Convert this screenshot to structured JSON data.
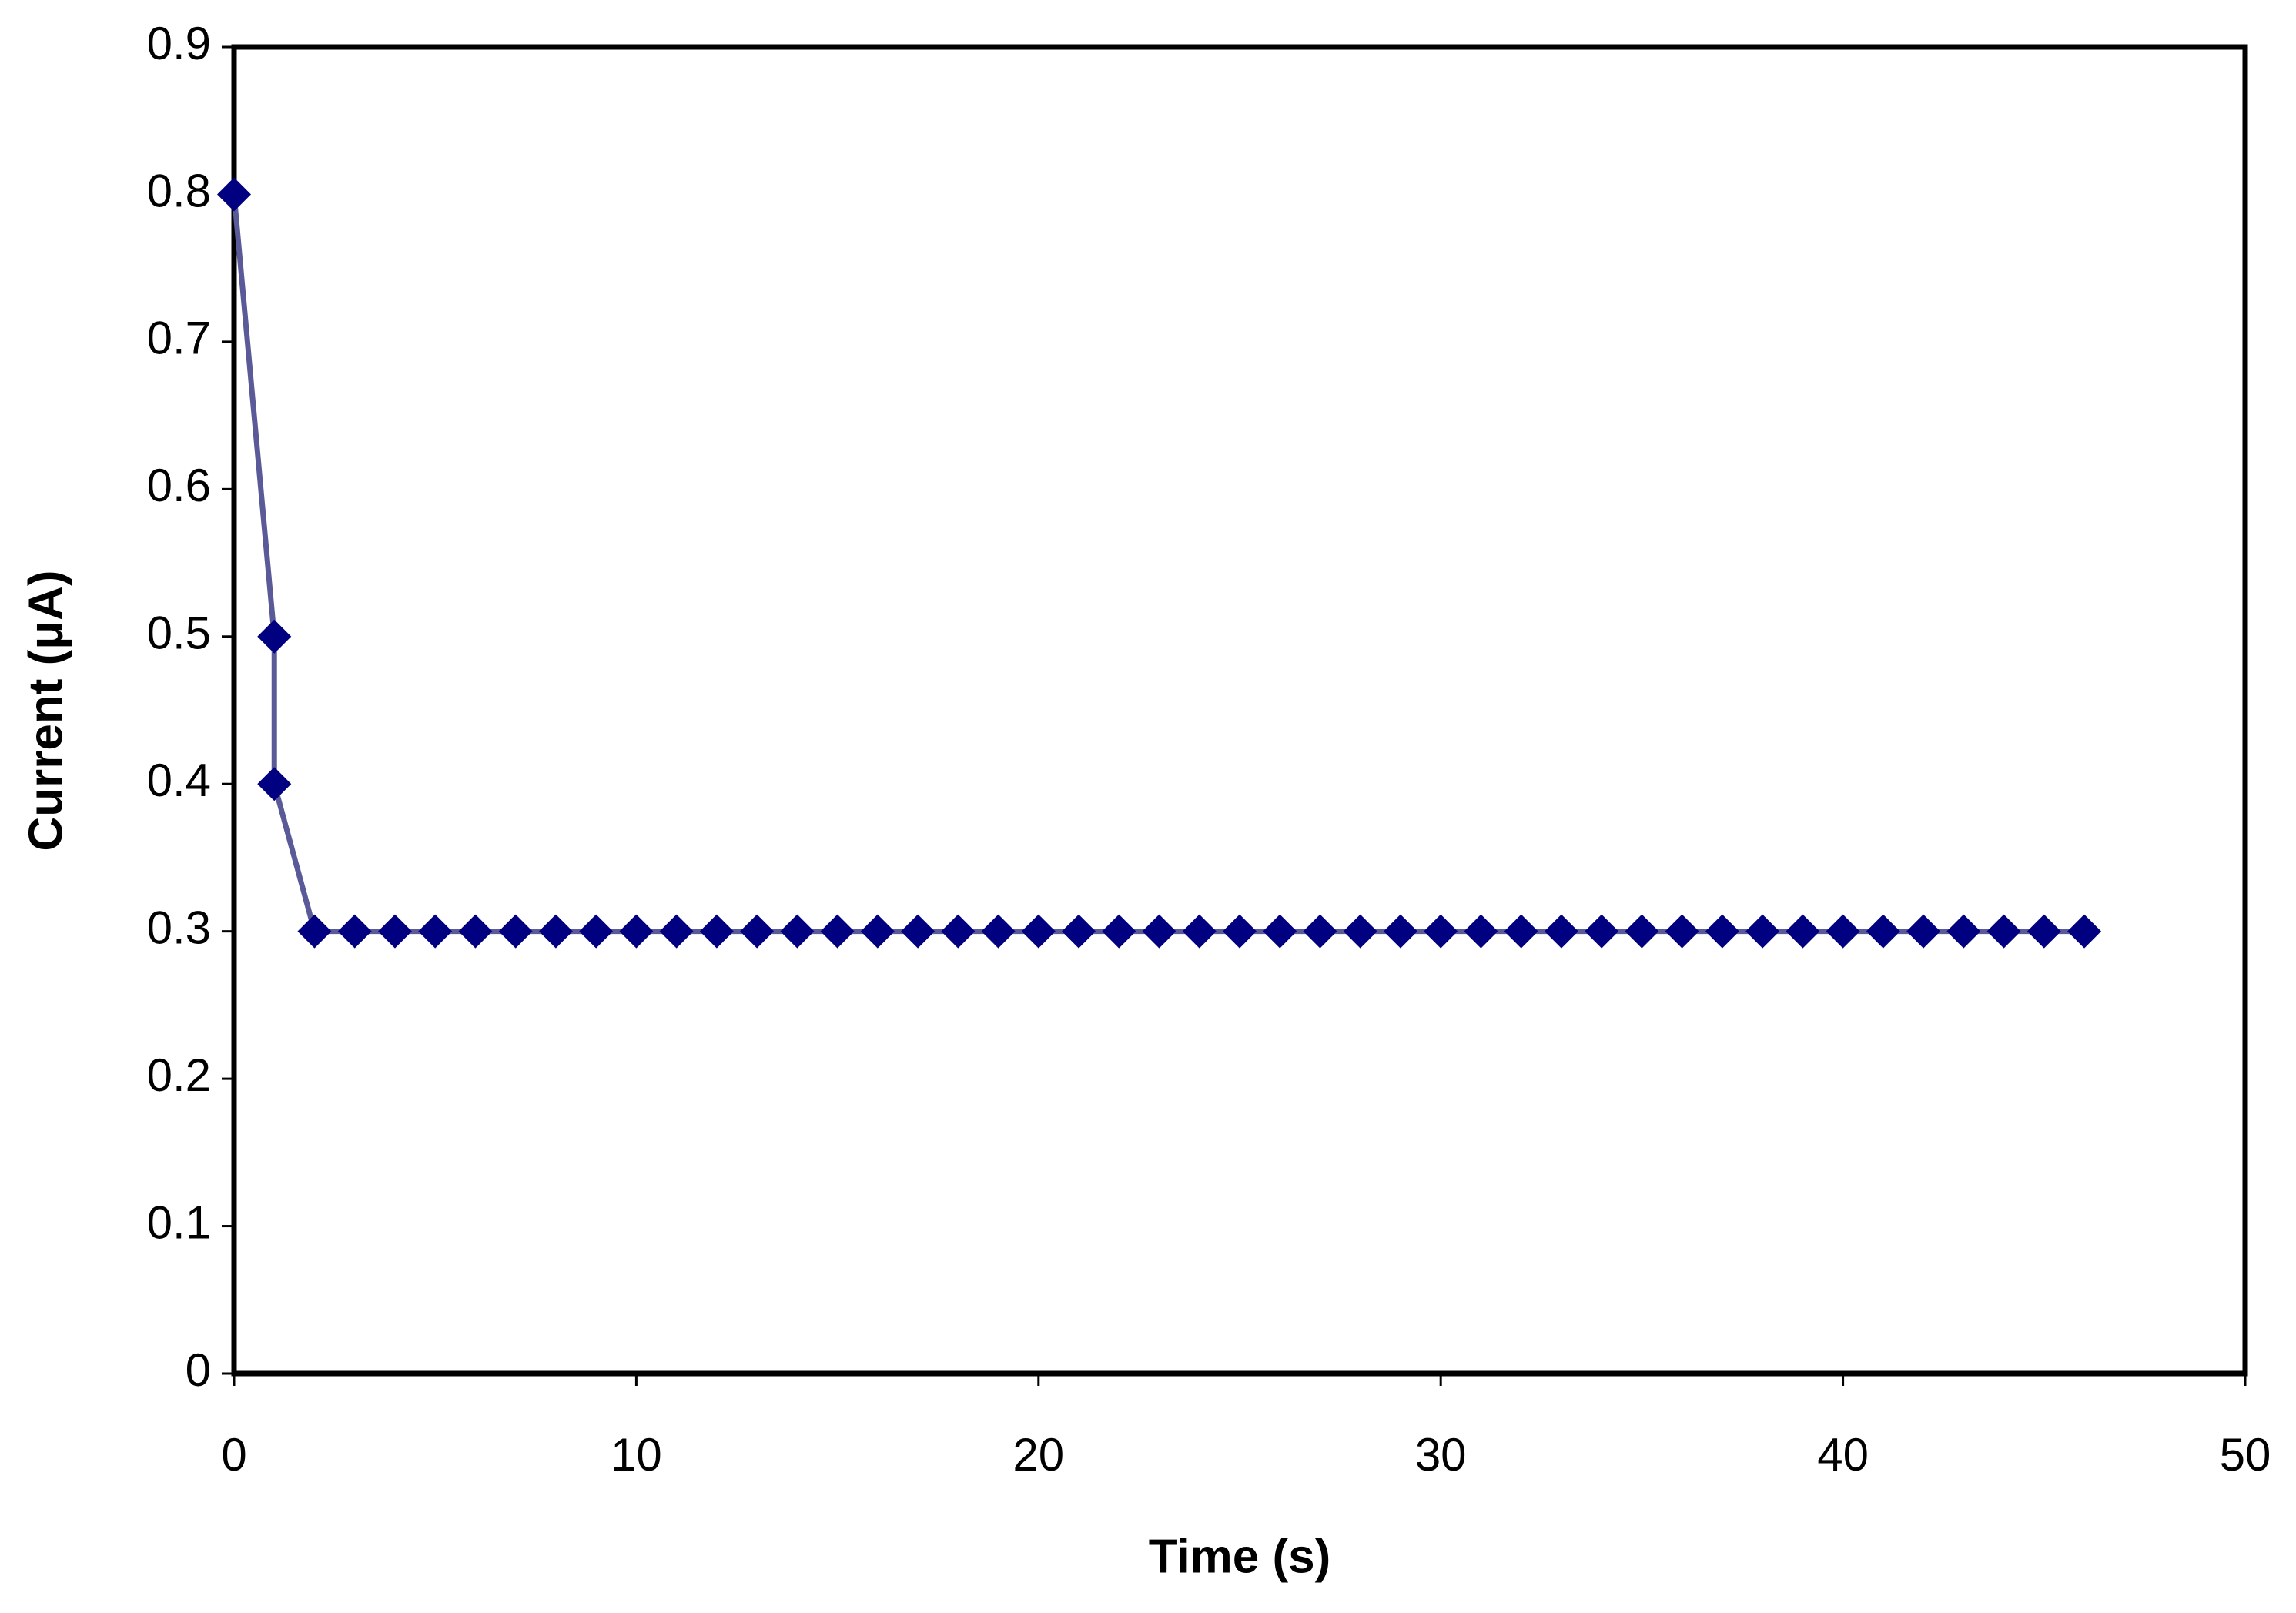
{
  "chart_data": {
    "type": "line",
    "x_label": "Time (s)",
    "y_label": "Current (μA)",
    "x": [
      0,
      1,
      1,
      2,
      3,
      4,
      5,
      6,
      7,
      8,
      9,
      10,
      11,
      12,
      13,
      14,
      15,
      16,
      17,
      18,
      19,
      20,
      21,
      22,
      23,
      24,
      25,
      26,
      27,
      28,
      29,
      30,
      31,
      32,
      33,
      34,
      35,
      36,
      37,
      38,
      39,
      40,
      41,
      42,
      43,
      44,
      45,
      46
    ],
    "values": [
      0.8,
      0.5,
      0.4,
      0.3,
      0.3,
      0.3,
      0.3,
      0.3,
      0.3,
      0.3,
      0.3,
      0.3,
      0.3,
      0.3,
      0.3,
      0.3,
      0.3,
      0.3,
      0.3,
      0.3,
      0.3,
      0.3,
      0.3,
      0.3,
      0.3,
      0.3,
      0.3,
      0.3,
      0.3,
      0.3,
      0.3,
      0.3,
      0.3,
      0.3,
      0.3,
      0.3,
      0.3,
      0.3,
      0.3,
      0.3,
      0.3,
      0.3,
      0.3,
      0.3,
      0.3,
      0.3,
      0.3,
      0.3
    ],
    "color": "#000080",
    "line_color": "#5a5a98",
    "marker": "diamond",
    "xlim": [
      0,
      50
    ],
    "xticks": [
      0,
      10,
      20,
      30,
      40,
      50
    ],
    "ylim": [
      0,
      0.9
    ],
    "yticks": [
      0,
      0.1,
      0.2,
      0.3,
      0.4,
      0.5,
      0.6,
      0.7,
      0.8,
      0.9
    ],
    "grid": false
  }
}
